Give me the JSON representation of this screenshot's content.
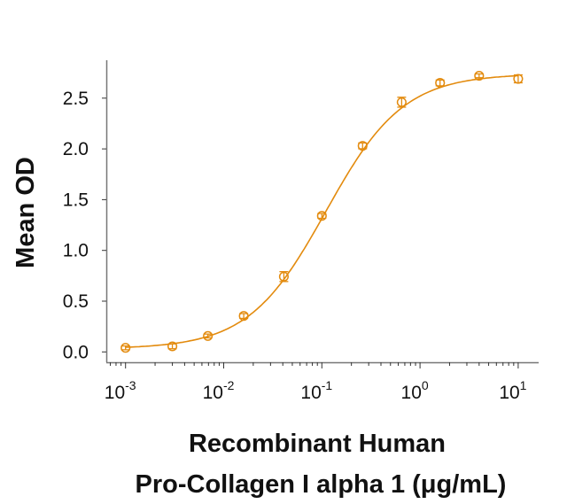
{
  "chart_data": {
    "type": "scatter",
    "xscale": "log",
    "xlim": [
      0.001,
      10
    ],
    "ylim": [
      0,
      2.5
    ],
    "xlabel": [
      "Recombinant Human",
      "Pro-Collagen I alpha 1 (μg/mL)"
    ],
    "ylabel": "Mean OD",
    "xticks": [
      {
        "base": "10",
        "exp": "-3",
        "value": 0.001
      },
      {
        "base": "10",
        "exp": "-2",
        "value": 0.01
      },
      {
        "base": "10",
        "exp": "-1",
        "value": 0.1
      },
      {
        "base": "10",
        "exp": "0",
        "value": 1
      },
      {
        "base": "10",
        "exp": "1",
        "value": 10
      }
    ],
    "yticks": [
      "0.0",
      "0.5",
      "1.0",
      "1.5",
      "2.0",
      "2.5"
    ],
    "grid": false,
    "color": "#E38B0E",
    "series": [
      {
        "x": [
          0.001,
          0.003,
          0.0069,
          0.016,
          0.041,
          0.1,
          0.26,
          0.65,
          1.6,
          4.0,
          10
        ],
        "y": [
          0.04,
          0.055,
          0.157,
          0.354,
          0.742,
          1.34,
          2.03,
          2.46,
          2.65,
          2.72,
          2.69
        ],
        "error": [
          0.01,
          0.015,
          0.01,
          0.015,
          0.04,
          0.015,
          0.02,
          0.04,
          0.02,
          0.01,
          0.03
        ],
        "fit": "4-parameter logistic curve"
      }
    ]
  }
}
